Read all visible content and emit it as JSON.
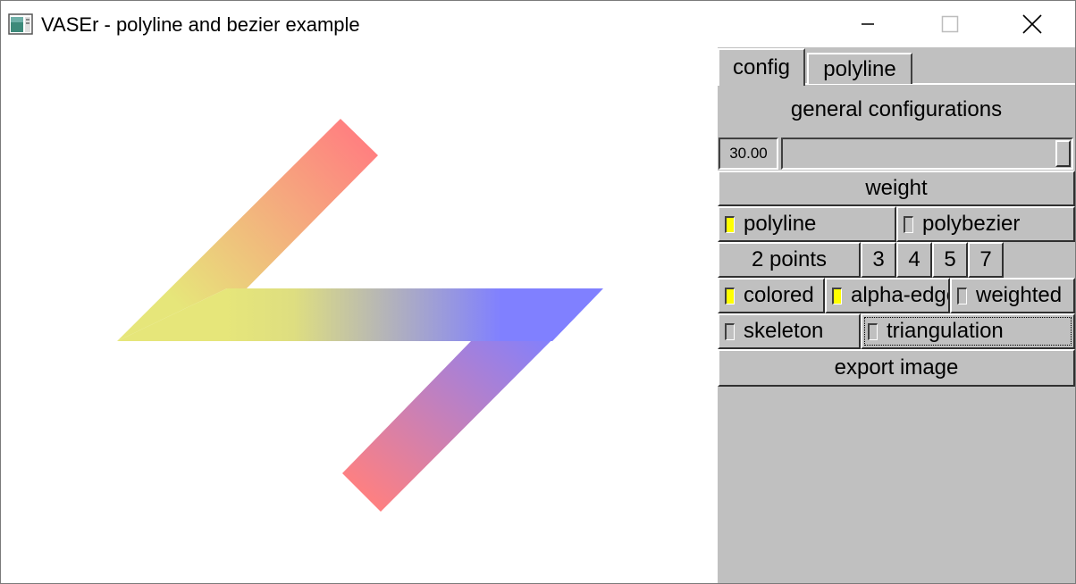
{
  "window": {
    "title": "VASEr - polyline and bezier example"
  },
  "icons": {
    "app": "app-window-icon",
    "minimize": "minimize-icon",
    "maximize": "maximize-icon",
    "close": "close-icon"
  },
  "tabs": [
    {
      "label": "config",
      "active": true
    },
    {
      "label": "polyline",
      "active": false
    }
  ],
  "config": {
    "section_title": "general configurations",
    "weight_value": "30.00",
    "weight_fraction": 1.0,
    "weight_label": "weight",
    "mode": {
      "polyline": {
        "label": "polyline",
        "checked": true
      },
      "polybezier": {
        "label": "polybezier",
        "checked": false
      }
    },
    "points_buttons": [
      "2 points",
      "3",
      "4",
      "5",
      "7"
    ],
    "options": {
      "colored": {
        "label": "colored",
        "checked": true
      },
      "alpha_edge": {
        "label": "alpha-edge",
        "checked": true
      },
      "weighted": {
        "label": "weighted",
        "checked": false
      },
      "skeleton": {
        "label": "skeleton",
        "checked": false
      },
      "triangulation": {
        "label": "triangulation",
        "checked": false
      }
    },
    "export_label": "export image"
  },
  "colors": {
    "panel_bg": "#c0c0c0",
    "stroke_red": "#ff8080",
    "stroke_yellow": "#e6e67a",
    "stroke_blue": "#8080ff",
    "checked": "#ffff00"
  }
}
